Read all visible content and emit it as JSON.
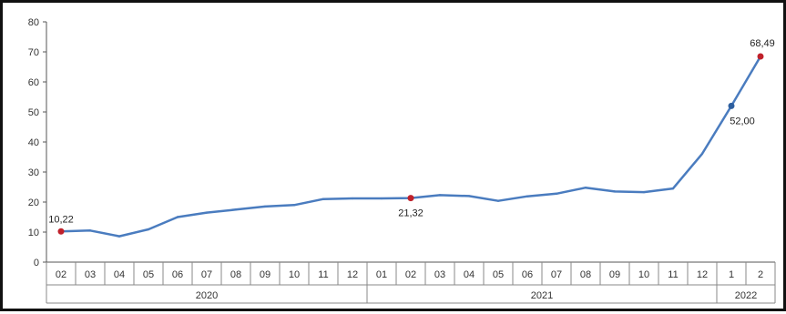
{
  "chart_data": {
    "type": "line",
    "ylim": [
      0,
      80
    ],
    "yticks": [
      "0",
      "10",
      "20",
      "30",
      "40",
      "50",
      "60",
      "70",
      "80"
    ],
    "grid": false,
    "months": [
      "02",
      "03",
      "04",
      "05",
      "06",
      "07",
      "08",
      "09",
      "10",
      "11",
      "12",
      "01",
      "02",
      "03",
      "04",
      "05",
      "06",
      "07",
      "08",
      "09",
      "10",
      "11",
      "12",
      "1",
      "2"
    ],
    "years": [
      {
        "label": "2020",
        "count": 11
      },
      {
        "label": "2021",
        "count": 12
      },
      {
        "label": "2022",
        "count": 2
      }
    ],
    "values": [
      10.22,
      10.5,
      8.6,
      10.9,
      15.0,
      16.5,
      17.5,
      18.5,
      19.0,
      21.0,
      21.2,
      21.2,
      21.32,
      22.3,
      22.0,
      20.4,
      21.9,
      22.8,
      24.8,
      23.5,
      23.3,
      24.5,
      36.1,
      52.0,
      68.49
    ],
    "series_color": "#4a7cbf",
    "markers": [
      {
        "index": 0,
        "label": "10,22",
        "color": "#c0212b"
      },
      {
        "index": 12,
        "label": "21,32",
        "color": "#c0212b"
      },
      {
        "index": 23,
        "label": "52,00",
        "color": "#2e5f9f"
      },
      {
        "index": 24,
        "label": "68,49",
        "color": "#c0212b"
      }
    ]
  }
}
